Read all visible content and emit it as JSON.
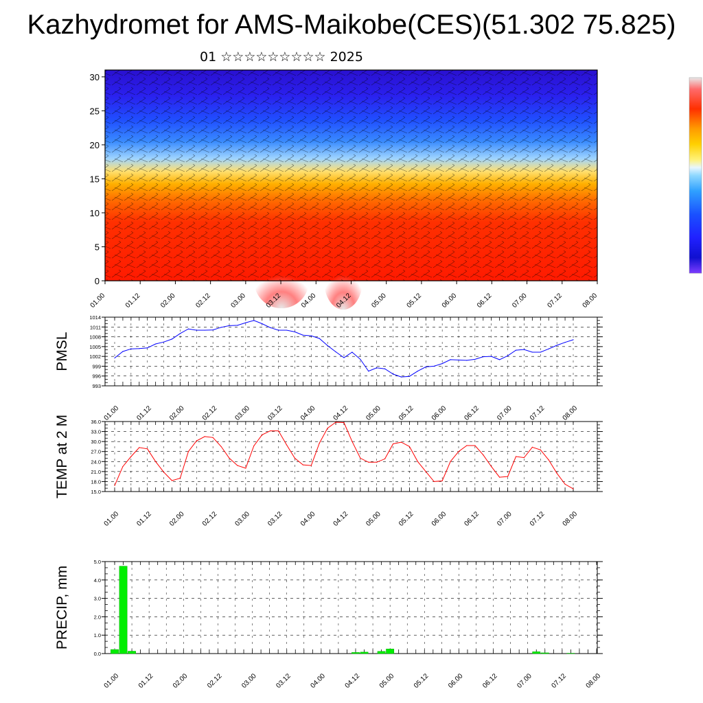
{
  "title": "Kazhydromet for AMS-Maikobe(CES)(51.302 75.825)",
  "subtitle": "01 ☆☆☆☆☆☆☆☆☆ 2025",
  "x_tick_labels": [
    "01.00",
    "01.12",
    "02.00",
    "02.12",
    "03.00",
    "03.12",
    "04.00",
    "04.12",
    "05.00",
    "05.12",
    "06.00",
    "06.12",
    "07.00",
    "07.12",
    "08.00"
  ],
  "chart_data": [
    {
      "type": "heatmap",
      "title": "",
      "ylim": [
        0,
        31
      ],
      "y_ticks": [
        0,
        5,
        10,
        15,
        20,
        25,
        30
      ],
      "colorbar_colors": [
        "#e8e8e8",
        "#ff6a6a",
        "#ff0000",
        "#ff5a00",
        "#ff9a00",
        "#ffd000",
        "#fff27a",
        "#8fd8ff",
        "#2fa0ff",
        "#1a50ff",
        "#2020ff",
        "#1010d0",
        "#7d3cff"
      ],
      "layers_colors": {
        "bottom": "#ff1a00",
        "low": "#ff5500",
        "mid": "#ffd040",
        "upper": "#3a8cff",
        "top": "#2a10e0"
      }
    },
    {
      "type": "line",
      "ylabel": "PMSL",
      "ylim": [
        993,
        1014
      ],
      "y_ticks": [
        993,
        996,
        999,
        1002,
        1005,
        1008,
        1011,
        1014
      ],
      "color": "#0000ff",
      "values": [
        1001.5,
        1003.5,
        1004.3,
        1004.4,
        1004.6,
        1005.8,
        1006.4,
        1007.3,
        1009.0,
        1010.4,
        1010.0,
        1010.0,
        1010.1,
        1010.9,
        1011.4,
        1011.5,
        1012.3,
        1013.0,
        1012.0,
        1010.8,
        1010.0,
        1010.0,
        1009.5,
        1008.5,
        1008.3,
        1007.5,
        1005.3,
        1003.4,
        1001.6,
        1003.3,
        1001.1,
        997.5,
        998.5,
        998.2,
        996.6,
        995.7,
        995.9,
        997.5,
        998.8,
        999.0,
        999.8,
        1001.0,
        1000.9,
        1000.8,
        1001.1,
        1001.9,
        1002.0,
        1001.0,
        1002.2,
        1003.9,
        1004.1,
        1003.3,
        1003.3,
        1004.3,
        1005.4,
        1006.3,
        1007.1
      ]
    },
    {
      "type": "line",
      "ylabel": "TEMP at 2 M",
      "ylim": [
        15,
        36
      ],
      "y_ticks": [
        "15.0",
        "18.0",
        "21.0",
        "24.0",
        "27.0",
        "30.0",
        "33.0",
        "36.0"
      ],
      "color": "#ff0000",
      "values": [
        16.8,
        22.5,
        25.5,
        28.2,
        27.8,
        24.0,
        20.8,
        18.3,
        19.0,
        27.0,
        30.2,
        31.5,
        31.2,
        28.5,
        25.0,
        22.8,
        22.0,
        28.7,
        32.0,
        33.2,
        33.2,
        29.0,
        25.0,
        23.0,
        22.8,
        29.5,
        34.0,
        35.8,
        35.7,
        30.0,
        25.0,
        23.8,
        23.8,
        24.8,
        29.3,
        29.8,
        28.5,
        24.0,
        21.0,
        18.0,
        18.2,
        24.0,
        27.0,
        28.8,
        28.8,
        26.0,
        22.5,
        19.3,
        19.5,
        25.5,
        25.2,
        28.3,
        27.5,
        24.5,
        20.5,
        17.2,
        15.8
      ]
    },
    {
      "type": "bar",
      "ylabel": "PRECIP, mm",
      "ylim": [
        0,
        5
      ],
      "y_ticks": [
        "0.0",
        "1.0",
        "2.0",
        "3.0",
        "4.0",
        "5.0"
      ],
      "color": "#00ee00",
      "values": [
        0.22,
        4.75,
        0.13,
        0,
        0,
        0,
        0,
        0,
        0,
        0,
        0,
        0,
        0,
        0,
        0,
        0,
        0,
        0,
        0,
        0,
        0,
        0,
        0,
        0,
        0,
        0,
        0,
        0,
        0.06,
        0.08,
        0,
        0.12,
        0.25,
        0,
        0,
        0,
        0,
        0,
        0,
        0,
        0,
        0,
        0,
        0,
        0,
        0,
        0,
        0,
        0,
        0.1,
        0.04,
        0,
        0,
        0.02,
        0,
        0,
        0
      ]
    }
  ]
}
